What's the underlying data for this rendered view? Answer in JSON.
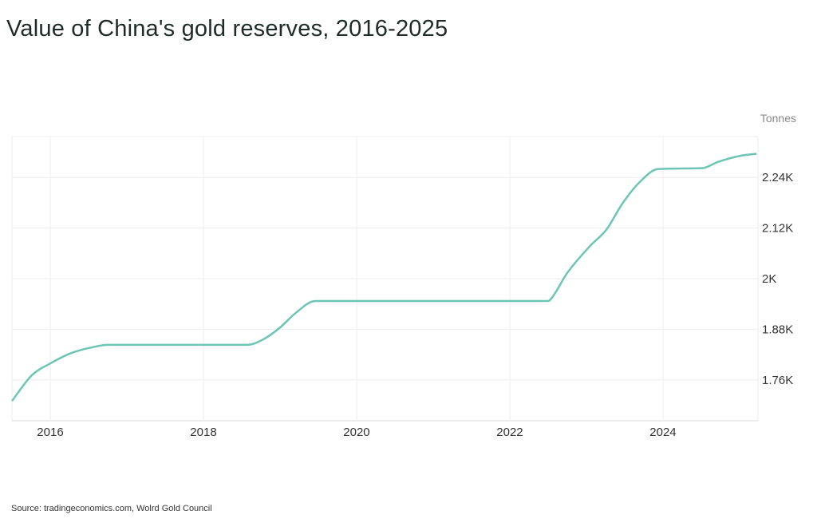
{
  "chart_data": {
    "type": "line",
    "title": "Value of China's gold reserves, 2016-2025",
    "ylabel": "Tonnes",
    "xlabel": "",
    "source": "Source: tradingeconomics.com, Wolrd Gold Council",
    "xlim": [
      2015.5,
      2025.24
    ],
    "ylim": [
      1663,
      2337
    ],
    "x_ticks": [
      2016,
      2018,
      2020,
      2022,
      2024
    ],
    "x_tick_labels": [
      "2016",
      "2018",
      "2020",
      "2022",
      "2024"
    ],
    "y_ticks": [
      1760,
      1880,
      2000,
      2120,
      2240
    ],
    "y_tick_labels": [
      "1.76K",
      "1.88K",
      "2K",
      "2.12K",
      "2.24K"
    ],
    "grid": true,
    "line_color": "#6cc5b5",
    "series": [
      {
        "name": "Gold reserves",
        "x": [
          2015.5,
          2015.76,
          2016.0,
          2016.28,
          2016.59,
          2016.75,
          2018.57,
          2018.78,
          2019.0,
          2019.2,
          2019.46,
          2022.5,
          2022.57,
          2022.74,
          2023.05,
          2023.26,
          2023.47,
          2023.68,
          2023.94,
          2024.51,
          2024.72,
          2025.03,
          2025.22
        ],
        "y": [
          1710,
          1771,
          1799,
          1824,
          1839,
          1843,
          1843,
          1856,
          1884,
          1918,
          1947,
          1947,
          1960,
          2011,
          2078,
          2116,
          2178,
          2226,
          2260,
          2262,
          2277,
          2292,
          2296
        ]
      }
    ]
  }
}
